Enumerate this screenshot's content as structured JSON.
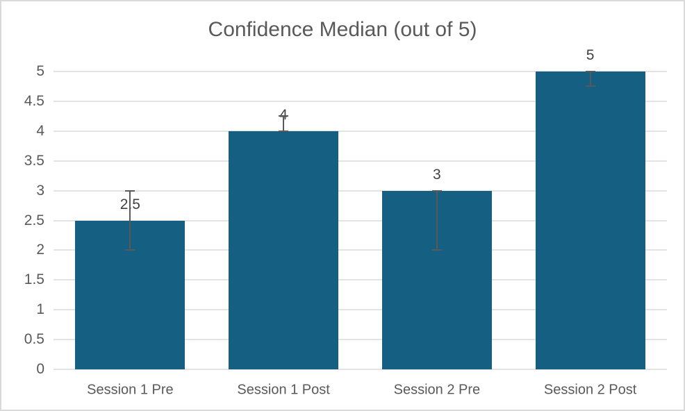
{
  "chart_data": {
    "type": "bar",
    "title": "Confidence Median (out of 5)",
    "categories": [
      "Session 1 Pre",
      "Session 1 Post",
      "Session 2 Pre",
      "Session 2 Post"
    ],
    "values": [
      2.5,
      4,
      3,
      5
    ],
    "data_labels": [
      "2.5",
      "4",
      "3",
      "5"
    ],
    "error_bars": [
      {
        "low": 2,
        "high": 3
      },
      {
        "low": 4,
        "high": 4.25
      },
      {
        "low": 2,
        "high": 3
      },
      {
        "low": 4.75,
        "high": 5
      }
    ],
    "xlabel": "",
    "ylabel": "",
    "ylim": [
      0,
      5
    ],
    "ytick_step": 0.5,
    "ytick_labels": [
      "0",
      "0.5",
      "1",
      "1.5",
      "2",
      "2.5",
      "3",
      "3.5",
      "4",
      "4.5",
      "5"
    ],
    "grid": true,
    "legend_position": "none",
    "colors": {
      "bar": "#156082",
      "gridline": "#e3e3e3",
      "title_text": "#595959",
      "axis_text": "#595959",
      "data_label_text": "#404040",
      "error_bar": "#595959",
      "background": "#ffffff",
      "border": "#dadada"
    }
  }
}
